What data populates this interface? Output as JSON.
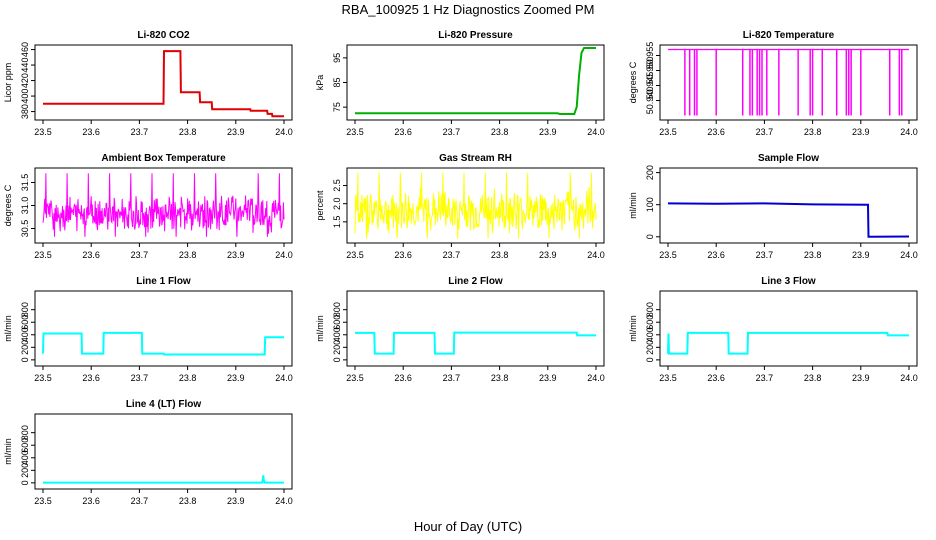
{
  "figure": {
    "title": "RBA_100925  1 Hz Diagnostics Zoomed PM",
    "xlabel": "Hour of Day (UTC)"
  },
  "chart_data": [
    {
      "type": "line",
      "title": "Li-820 CO2",
      "ylabel": "Licor ppm",
      "color": "#e00000",
      "xlim": [
        23.5,
        24.0
      ],
      "ylim": [
        373,
        462
      ],
      "xticks": [
        "23.5",
        "23.6",
        "23.7",
        "23.8",
        "23.9",
        "24.0"
      ],
      "yticks": [
        {
          "v": 380,
          "label": "380"
        },
        {
          "v": 400,
          "label": "400"
        },
        {
          "v": 420,
          "label": "420"
        },
        {
          "v": 440,
          "label": "440"
        },
        {
          "v": 460,
          "label": "460"
        }
      ],
      "series": [
        {
          "x": [
            23.5,
            23.75,
            23.751,
            23.785,
            23.786,
            23.825,
            23.826,
            23.85,
            23.851,
            23.93,
            23.931,
            23.965,
            23.966,
            23.975,
            23.976,
            24.0
          ],
          "y": [
            390,
            390,
            458,
            458,
            405,
            405,
            392,
            392,
            383,
            383,
            381,
            381,
            377,
            377,
            374,
            374
          ]
        }
      ]
    },
    {
      "type": "line",
      "title": "Li-820 Pressure",
      "ylabel": "kPa",
      "color": "#00b000",
      "xlim": [
        23.5,
        24.0
      ],
      "ylim": [
        71,
        99
      ],
      "xticks": [
        "23.5",
        "23.6",
        "23.7",
        "23.8",
        "23.9",
        "24.0"
      ],
      "yticks": [
        {
          "v": 75,
          "label": "75"
        },
        {
          "v": 85,
          "label": "85"
        },
        {
          "v": 95,
          "label": "95"
        }
      ],
      "series": [
        {
          "x": [
            23.5,
            23.92,
            23.925,
            23.955,
            23.96,
            23.965,
            23.97,
            23.975,
            24.0
          ],
          "y": [
            72.5,
            72.5,
            72.2,
            72.2,
            75,
            88,
            97,
            99,
            99
          ]
        }
      ]
    },
    {
      "type": "line",
      "title": "Li-820 Temperature",
      "ylabel": "degrees C",
      "color": "#ff00ff",
      "xlim": [
        23.5,
        24.0
      ],
      "ylim": [
        50.9345,
        50.9575
      ],
      "xticks": [
        "23.5",
        "23.6",
        "23.7",
        "23.8",
        "23.9",
        "24.0"
      ],
      "yticks": [
        {
          "v": 50.94,
          "label": "50.940"
        },
        {
          "v": 50.945,
          "label": "50.945"
        },
        {
          "v": 50.95,
          "label": "50.950"
        },
        {
          "v": 50.955,
          "label": "50.955"
        }
      ],
      "series": [
        {
          "baseline": 50.957,
          "low": 50.935,
          "drops": [
            23.535,
            23.545,
            23.555,
            23.56,
            23.6,
            23.655,
            23.67,
            23.675,
            23.685,
            23.69,
            23.695,
            23.705,
            23.73,
            23.77,
            23.795,
            23.8,
            23.82,
            23.85,
            23.87,
            23.875,
            23.88,
            23.9,
            23.96,
            23.98,
            23.985
          ],
          "partial": [
            [
              23.6,
              50.952
            ]
          ]
        }
      ]
    },
    {
      "type": "line",
      "title": "Ambient Box Temperature",
      "ylabel": "degrees C",
      "color": "#ff00ff",
      "xlim": [
        23.5,
        24.0
      ],
      "ylim": [
        30.25,
        31.75
      ],
      "xticks": [
        "23.5",
        "23.6",
        "23.7",
        "23.8",
        "23.9",
        "24.0"
      ],
      "yticks": [
        {
          "v": 30.5,
          "label": "30.5"
        },
        {
          "v": 31.0,
          "label": "31.0"
        },
        {
          "v": 31.5,
          "label": "31.5"
        }
      ],
      "series": [
        {
          "noise": true,
          "center": 30.82,
          "amp": 0.45,
          "spike_max": 31.7,
          "spike_min": 30.32
        }
      ]
    },
    {
      "type": "line",
      "title": "Gas Stream RH",
      "ylabel": "percent",
      "color": "#ffff00",
      "xlim": [
        23.5,
        24.0
      ],
      "ylim": [
        1.0,
        2.9
      ],
      "xticks": [
        "23.5",
        "23.6",
        "23.7",
        "23.8",
        "23.9",
        "24.0"
      ],
      "yticks": [
        {
          "v": 1.5,
          "label": "1.5"
        },
        {
          "v": 2.0,
          "label": "2.0"
        },
        {
          "v": 2.5,
          "label": "2.5"
        }
      ],
      "series": [
        {
          "noise": true,
          "center": 1.8,
          "amp": 0.7,
          "spike_max": 2.85,
          "spike_min": 1.05
        }
      ]
    },
    {
      "type": "line",
      "title": "Sample Flow",
      "ylabel": "ml/min",
      "color": "#0000d0",
      "xlim": [
        23.5,
        24.0
      ],
      "ylim": [
        -10,
        205
      ],
      "xticks": [
        "23.5",
        "23.6",
        "23.7",
        "23.8",
        "23.9",
        "24.0"
      ],
      "yticks": [
        {
          "v": 0,
          "label": "0"
        },
        {
          "v": 100,
          "label": "100"
        },
        {
          "v": 200,
          "label": "200"
        }
      ],
      "series": [
        {
          "x": [
            23.5,
            23.6,
            23.7,
            23.8,
            23.915,
            23.916,
            24.0
          ],
          "y": [
            104,
            103,
            104,
            101,
            100,
            0,
            1
          ]
        }
      ]
    },
    {
      "type": "line",
      "title": "Line 1 Flow",
      "ylabel": "ml/min",
      "color": "#00ffff",
      "xlim": [
        23.5,
        24.0
      ],
      "ylim": [
        -50,
        1050
      ],
      "xticks": [
        "23.5",
        "23.6",
        "23.7",
        "23.8",
        "23.9",
        "24.0"
      ],
      "yticks": [
        {
          "v": 0,
          "label": "0"
        },
        {
          "v": 200,
          "label": "200"
        },
        {
          "v": 400,
          "label": "400"
        },
        {
          "v": 600,
          "label": "600"
        },
        {
          "v": 800,
          "label": "800"
        }
      ],
      "series": [
        {
          "x": [
            23.5,
            23.501,
            23.58,
            23.581,
            23.625,
            23.626,
            23.705,
            23.706,
            23.75,
            23.751,
            23.96,
            23.961,
            24.0
          ],
          "y": [
            100,
            420,
            420,
            100,
            100,
            430,
            430,
            100,
            100,
            85,
            85,
            360,
            360
          ]
        }
      ]
    },
    {
      "type": "line",
      "title": "Line 2 Flow",
      "ylabel": "ml/min",
      "color": "#00ffff",
      "xlim": [
        23.5,
        24.0
      ],
      "ylim": [
        -50,
        1050
      ],
      "xticks": [
        "23.5",
        "23.6",
        "23.7",
        "23.8",
        "23.9",
        "24.0"
      ],
      "yticks": [
        {
          "v": 0,
          "label": "0"
        },
        {
          "v": 200,
          "label": "200"
        },
        {
          "v": 400,
          "label": "400"
        },
        {
          "v": 600,
          "label": "600"
        },
        {
          "v": 800,
          "label": "800"
        }
      ],
      "series": [
        {
          "x": [
            23.5,
            23.54,
            23.541,
            23.58,
            23.581,
            23.665,
            23.666,
            23.705,
            23.706,
            23.96,
            23.961,
            24.0
          ],
          "y": [
            430,
            430,
            100,
            100,
            430,
            430,
            100,
            100,
            435,
            435,
            390,
            390
          ]
        }
      ]
    },
    {
      "type": "line",
      "title": "Line 3 Flow",
      "ylabel": "ml/min",
      "color": "#00ffff",
      "xlim": [
        23.5,
        24.0
      ],
      "ylim": [
        -50,
        1050
      ],
      "xticks": [
        "23.5",
        "23.6",
        "23.7",
        "23.8",
        "23.9",
        "24.0"
      ],
      "yticks": [
        {
          "v": 0,
          "label": "0"
        },
        {
          "v": 200,
          "label": "200"
        },
        {
          "v": 400,
          "label": "400"
        },
        {
          "v": 600,
          "label": "600"
        },
        {
          "v": 800,
          "label": "800"
        }
      ],
      "series": [
        {
          "x": [
            23.5,
            23.501,
            23.502,
            23.54,
            23.541,
            23.625,
            23.626,
            23.665,
            23.666,
            23.955,
            23.956,
            24.0
          ],
          "y": [
            100,
            420,
            100,
            100,
            430,
            430,
            100,
            100,
            430,
            430,
            390,
            390
          ]
        }
      ]
    },
    {
      "type": "line",
      "title": "Line 4 (LT) Flow",
      "ylabel": "ml/min",
      "color": "#00ffff",
      "xlim": [
        23.5,
        24.0
      ],
      "ylim": [
        -50,
        1050
      ],
      "xticks": [
        "23.5",
        "23.6",
        "23.7",
        "23.8",
        "23.9",
        "24.0"
      ],
      "yticks": [
        {
          "v": 0,
          "label": "0"
        },
        {
          "v": 200,
          "label": "200"
        },
        {
          "v": 400,
          "label": "400"
        },
        {
          "v": 600,
          "label": "600"
        },
        {
          "v": 800,
          "label": "800"
        }
      ],
      "series": [
        {
          "x": [
            23.5,
            23.955,
            23.957,
            23.958,
            23.96,
            24.0
          ],
          "y": [
            5,
            5,
            120,
            40,
            5,
            5
          ]
        }
      ]
    }
  ]
}
